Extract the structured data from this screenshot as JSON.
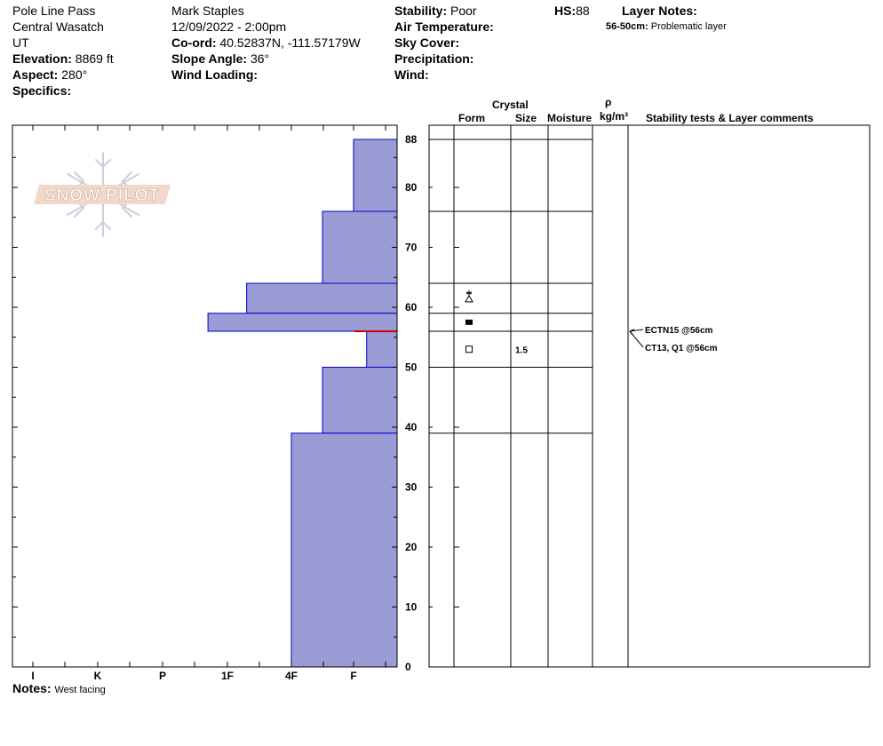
{
  "header": {
    "location": "Pole Line Pass",
    "range": "Central Wasatch",
    "state": "UT",
    "elevation_label": "Elevation:",
    "elevation_value": "8869 ft",
    "aspect_label": "Aspect:",
    "aspect_value": "280°",
    "specifics_label": "Specifics:",
    "observer": "Mark Staples",
    "datetime": "12/09/2022 - 2:00pm",
    "coord_label": "Co-ord:",
    "coord_value": "40.52837N, -111.57179W",
    "slope_label": "Slope Angle:",
    "slope_value": "36°",
    "wind_loading_label": "Wind Loading:",
    "stability_label": "Stability:",
    "stability_value": "Poor",
    "hs_label": "HS:",
    "hs_value": "88",
    "air_temp_label": "Air Temperature:",
    "sky_cover_label": "Sky Cover:",
    "precip_label": "Precipitation:",
    "wind_label": "Wind:",
    "layer_notes_label": "Layer Notes:",
    "layer_note_range": "56-50cm:",
    "layer_note_text": "Problematic layer"
  },
  "logo_text": "SNOW PILOT",
  "columns": {
    "crystal": "Crystal",
    "form": "Form",
    "size": "Size",
    "moisture": "Moisture",
    "rho": "ρ",
    "density_unit": "kg/m³",
    "comments": "Stability tests & Layer comments"
  },
  "notes_label": "Notes:",
  "notes_value": "West facing",
  "colors": {
    "layer_fill": "#9b9bd6",
    "layer_edge": "#0000cc",
    "weak_layer_line": "#cc0000"
  },
  "chart_data": {
    "type": "bar",
    "orientation": "horizontal",
    "hardness_scale": [
      "I",
      "K",
      "P",
      "1F",
      "4F",
      "F"
    ],
    "yticks": [
      0,
      10,
      20,
      30,
      40,
      50,
      60,
      70,
      80,
      88
    ],
    "ylim": [
      0,
      88
    ],
    "layers": [
      {
        "top": 88,
        "bottom": 76,
        "hardness": "F"
      },
      {
        "top": 76,
        "bottom": 64,
        "hardness": "4F+"
      },
      {
        "top": 64,
        "bottom": 59,
        "hardness": "1F-"
      },
      {
        "top": 59,
        "bottom": 56,
        "hardness": "P-"
      },
      {
        "top": 56,
        "bottom": 50,
        "hardness": "F+"
      },
      {
        "top": 50,
        "bottom": 39,
        "hardness": "4F+"
      },
      {
        "top": 39,
        "bottom": 0,
        "hardness": "4F"
      }
    ],
    "hardness_values": [
      5.0,
      4.5,
      3.3,
      2.7,
      5.3,
      4.5,
      4.0
    ],
    "weak_layer_depth": 56,
    "layer_boundaries": [
      88,
      76,
      64,
      59,
      56,
      50,
      39
    ],
    "crystals": [
      {
        "depth": 61.5,
        "form": "precipitation-particles-and-surface-hoar",
        "size": ""
      },
      {
        "depth": 57.5,
        "form": "faceted-rounded",
        "size": ""
      },
      {
        "depth": 53,
        "form": "faceted",
        "size": "1.5"
      }
    ],
    "tests": [
      {
        "depth": 56,
        "text": "ECTN15 @56cm"
      },
      {
        "depth": 56,
        "text": "CT13, Q1 @56cm"
      }
    ]
  }
}
